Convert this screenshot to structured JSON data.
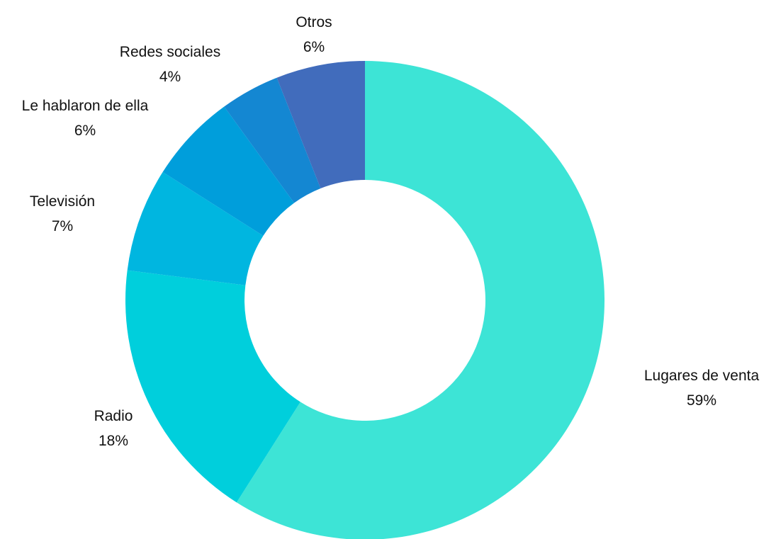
{
  "chart_data": {
    "type": "pie",
    "variant": "donut",
    "start_angle_deg": 0,
    "direction": "clockwise",
    "slices": [
      {
        "label": "Lugares de venta",
        "value": 59,
        "value_label": "59%",
        "color": "#3DE4D6"
      },
      {
        "label": "Radio",
        "value": 18,
        "value_label": "18%",
        "color": "#00CFDC"
      },
      {
        "label": "Televisión",
        "value": 7,
        "value_label": "7%",
        "color": "#00B6E0"
      },
      {
        "label": "Le hablaron de ella",
        "value": 6,
        "value_label": "6%",
        "color": "#009EDB"
      },
      {
        "label": "Redes sociales",
        "value": 4,
        "value_label": "4%",
        "color": "#1487D2"
      },
      {
        "label": "Otros",
        "value": 6,
        "value_label": "6%",
        "color": "#416CBC"
      }
    ]
  }
}
